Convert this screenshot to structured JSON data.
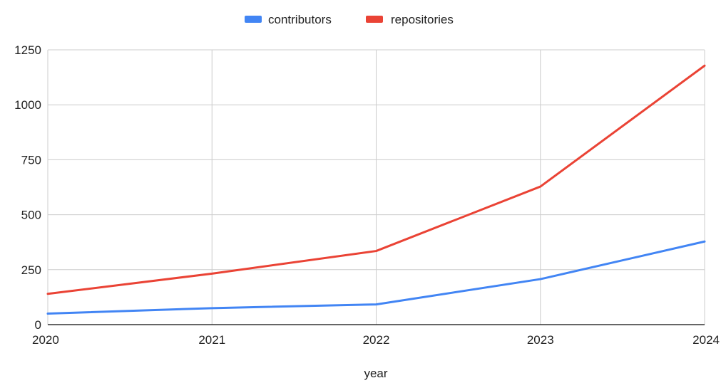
{
  "chart_data": {
    "type": "line",
    "x": [
      "2020",
      "2021",
      "2022",
      "2023",
      "2024"
    ],
    "series": [
      {
        "name": "contributors",
        "color": "#4285f4",
        "values": [
          50,
          75,
          92,
          207,
          378
        ]
      },
      {
        "name": "repositories",
        "color": "#ea4335",
        "values": [
          140,
          232,
          335,
          628,
          1178
        ]
      }
    ],
    "xlabel": "year",
    "ylabel": "",
    "ylim": [
      0,
      1250
    ],
    "yticks": [
      "0",
      "250",
      "500",
      "750",
      "1000",
      "1250"
    ],
    "grid": true,
    "legend_position": "top"
  }
}
